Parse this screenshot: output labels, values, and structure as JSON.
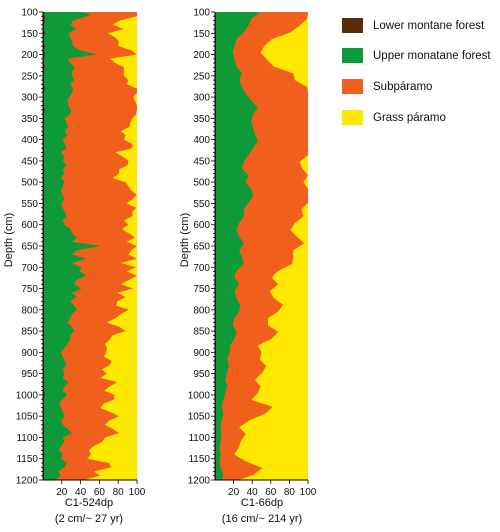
{
  "legend": [
    {
      "label": "Lower montane forest",
      "color": "#5a2a0a"
    },
    {
      "label": "Upper monatane forest",
      "color": "#0f9a3a"
    },
    {
      "label": "Subpáramo",
      "color": "#f0601c"
    },
    {
      "label": "Grass páramo",
      "color": "#ffe800"
    }
  ],
  "chart_data": [
    {
      "type": "area",
      "stacked": "cumulative percent",
      "title": "",
      "xlabel": "C1-524dp",
      "xlabel_sub": "(2 cm/~ 27 yr)",
      "ylabel": "Depth (cm)",
      "xlim": [
        0,
        100
      ],
      "ylim": [
        1200,
        100
      ],
      "y_reversed": true,
      "xticks": [
        20,
        40,
        60,
        80,
        100
      ],
      "yticks": [
        100,
        150,
        200,
        250,
        300,
        350,
        400,
        450,
        500,
        550,
        600,
        650,
        700,
        750,
        800,
        850,
        900,
        950,
        1000,
        1050,
        1100,
        1150,
        1200
      ],
      "depth": [
        100,
        105,
        110,
        120,
        130,
        140,
        150,
        160,
        170,
        180,
        190,
        200,
        210,
        220,
        230,
        240,
        250,
        260,
        270,
        280,
        290,
        300,
        310,
        320,
        330,
        340,
        350,
        360,
        370,
        380,
        390,
        400,
        410,
        420,
        430,
        440,
        450,
        460,
        470,
        480,
        490,
        500,
        510,
        520,
        530,
        540,
        550,
        560,
        570,
        580,
        590,
        600,
        610,
        620,
        630,
        640,
        650,
        660,
        670,
        680,
        690,
        700,
        710,
        720,
        730,
        740,
        750,
        760,
        770,
        780,
        790,
        800,
        810,
        820,
        830,
        840,
        850,
        860,
        870,
        880,
        890,
        900,
        910,
        920,
        930,
        940,
        950,
        960,
        970,
        980,
        990,
        1000,
        1010,
        1020,
        1030,
        1040,
        1050,
        1060,
        1070,
        1080,
        1090,
        1100,
        1110,
        1120,
        1130,
        1140,
        1150,
        1160,
        1170,
        1180,
        1190,
        1200
      ],
      "series": [
        {
          "name": "Lower montane forest",
          "values": [
            2,
            1,
            2,
            2,
            1,
            1,
            2,
            1,
            1,
            2,
            1,
            2,
            1,
            1,
            2,
            1,
            1,
            1,
            1,
            2,
            1,
            1,
            1,
            1,
            2,
            1,
            1,
            1,
            1,
            1,
            1,
            1,
            1,
            1,
            1,
            1,
            1,
            1,
            1,
            1,
            1,
            1,
            1,
            1,
            1,
            1,
            1,
            1,
            1,
            1,
            1,
            1,
            1,
            1,
            1,
            1,
            1,
            1,
            1,
            1,
            1,
            1,
            1,
            1,
            1,
            1,
            1,
            1,
            1,
            1,
            1,
            1,
            1,
            1,
            1,
            1,
            1,
            1,
            1,
            1,
            1,
            1,
            1,
            1,
            1,
            1,
            1,
            1,
            1,
            1,
            1,
            2,
            1,
            1,
            1,
            1,
            1,
            1,
            1,
            1,
            1,
            1,
            1,
            1,
            1,
            1,
            1,
            1,
            1,
            1,
            1,
            1
          ]
        },
        {
          "name": "Upper monatane forest",
          "values": [
            38,
            50,
            45,
            30,
            28,
            35,
            25,
            28,
            30,
            30,
            38,
            55,
            25,
            28,
            32,
            30,
            30,
            32,
            28,
            30,
            30,
            27,
            25,
            26,
            28,
            28,
            22,
            24,
            26,
            22,
            25,
            20,
            22,
            24,
            18,
            22,
            20,
            24,
            20,
            22,
            18,
            22,
            20,
            18,
            20,
            22,
            18,
            20,
            22,
            24,
            20,
            22,
            28,
            30,
            35,
            30,
            60,
            35,
            30,
            45,
            30,
            40,
            38,
            45,
            35,
            32,
            40,
            30,
            35,
            28,
            32,
            35,
            30,
            28,
            25,
            30,
            32,
            28,
            28,
            25,
            22,
            18,
            20,
            22,
            24,
            20,
            22,
            20,
            26,
            22,
            20,
            24,
            20,
            16,
            18,
            20,
            22,
            18,
            20,
            25,
            30,
            20,
            22,
            18,
            16,
            20,
            18,
            24,
            22,
            15,
            18,
            12
          ]
        },
        {
          "name": "Subpáramo",
          "values": [
            62,
            60,
            60,
            50,
            45,
            50,
            42,
            48,
            50,
            48,
            55,
            70,
            45,
            48,
            52,
            55,
            55,
            58,
            60,
            70,
            75,
            68,
            72,
            75,
            78,
            70,
            72,
            68,
            65,
            60,
            62,
            65,
            72,
            70,
            58,
            62,
            70,
            65,
            60,
            58,
            55,
            65,
            70,
            75,
            80,
            72,
            70,
            78,
            72,
            70,
            65,
            68,
            55,
            60,
            62,
            58,
            65,
            58,
            60,
            55,
            52,
            58,
            50,
            62,
            55,
            50,
            55,
            48,
            52,
            50,
            45,
            55,
            52,
            48,
            42,
            50,
            55,
            45,
            42,
            40,
            45,
            48,
            44,
            50,
            46,
            42,
            45,
            40,
            52,
            48,
            44,
            50,
            55,
            48,
            42,
            50,
            58,
            52,
            45,
            48,
            50,
            45,
            40,
            35,
            32,
            30,
            28,
            45,
            50,
            38,
            42,
            30
          ]
        }
      ]
    },
    {
      "type": "area",
      "stacked": "cumulative percent",
      "title": "",
      "xlabel": "C1-66dp",
      "xlabel_sub": "(16 cm/~ 214 yr)",
      "ylabel": "Depth (cm)",
      "xlim": [
        0,
        100
      ],
      "ylim": [
        1200,
        100
      ],
      "y_reversed": true,
      "xticks": [
        20,
        40,
        60,
        80,
        100
      ],
      "yticks": [
        100,
        150,
        200,
        250,
        300,
        350,
        400,
        450,
        500,
        550,
        600,
        650,
        700,
        750,
        800,
        850,
        900,
        950,
        1000,
        1050,
        1100,
        1150,
        1200
      ],
      "depth": [
        100,
        116,
        132,
        148,
        164,
        180,
        196,
        212,
        228,
        244,
        260,
        276,
        292,
        308,
        324,
        340,
        356,
        372,
        388,
        404,
        420,
        436,
        452,
        468,
        484,
        500,
        516,
        532,
        548,
        564,
        580,
        596,
        612,
        628,
        644,
        660,
        676,
        692,
        708,
        724,
        740,
        756,
        772,
        788,
        804,
        820,
        836,
        852,
        868,
        884,
        900,
        916,
        932,
        948,
        964,
        980,
        996,
        1012,
        1028,
        1044,
        1060,
        1076,
        1092,
        1108,
        1124,
        1140,
        1156,
        1172,
        1188,
        1200
      ],
      "series": [
        {
          "name": "Lower montane forest",
          "values": [
            1,
            1,
            1,
            1,
            1,
            1,
            1,
            1,
            1,
            1,
            1,
            1,
            1,
            1,
            1,
            1,
            1,
            1,
            1,
            1,
            1,
            1,
            1,
            1,
            1,
            1,
            1,
            1,
            1,
            1,
            1,
            1,
            1,
            1,
            1,
            1,
            1,
            1,
            1,
            1,
            1,
            1,
            1,
            1,
            1,
            1,
            1,
            1,
            1,
            1,
            1,
            1,
            1,
            1,
            1,
            1,
            1,
            1,
            1,
            1,
            1,
            1,
            1,
            1,
            1,
            1,
            1,
            1,
            1,
            1
          ]
        },
        {
          "name": "Upper monatane forest",
          "values": [
            48,
            38,
            35,
            30,
            22,
            20,
            18,
            20,
            22,
            28,
            25,
            28,
            32,
            38,
            45,
            40,
            38,
            40,
            42,
            45,
            40,
            35,
            30,
            28,
            35,
            32,
            38,
            40,
            35,
            30,
            30,
            25,
            22,
            25,
            30,
            25,
            28,
            30,
            22,
            20,
            25,
            20,
            22,
            26,
            25,
            20,
            18,
            22,
            20,
            15,
            15,
            12,
            14,
            12,
            10,
            12,
            10,
            8,
            6,
            8,
            6,
            5,
            6,
            5,
            4,
            5,
            4,
            5,
            8,
            6
          ]
        },
        {
          "name": "Subpáramo",
          "values": [
            55,
            60,
            55,
            50,
            38,
            32,
            30,
            35,
            40,
            55,
            60,
            70,
            80,
            88,
            88,
            82,
            80,
            75,
            80,
            82,
            70,
            65,
            60,
            65,
            70,
            62,
            72,
            74,
            68,
            62,
            64,
            60,
            58,
            62,
            65,
            58,
            55,
            52,
            45,
            40,
            42,
            38,
            40,
            46,
            42,
            36,
            38,
            45,
            40,
            30,
            34,
            35,
            40,
            38,
            32,
            36,
            35,
            30,
            55,
            45,
            30,
            20,
            26,
            22,
            20,
            15,
            28,
            45,
            32,
            18
          ]
        }
      ]
    }
  ]
}
